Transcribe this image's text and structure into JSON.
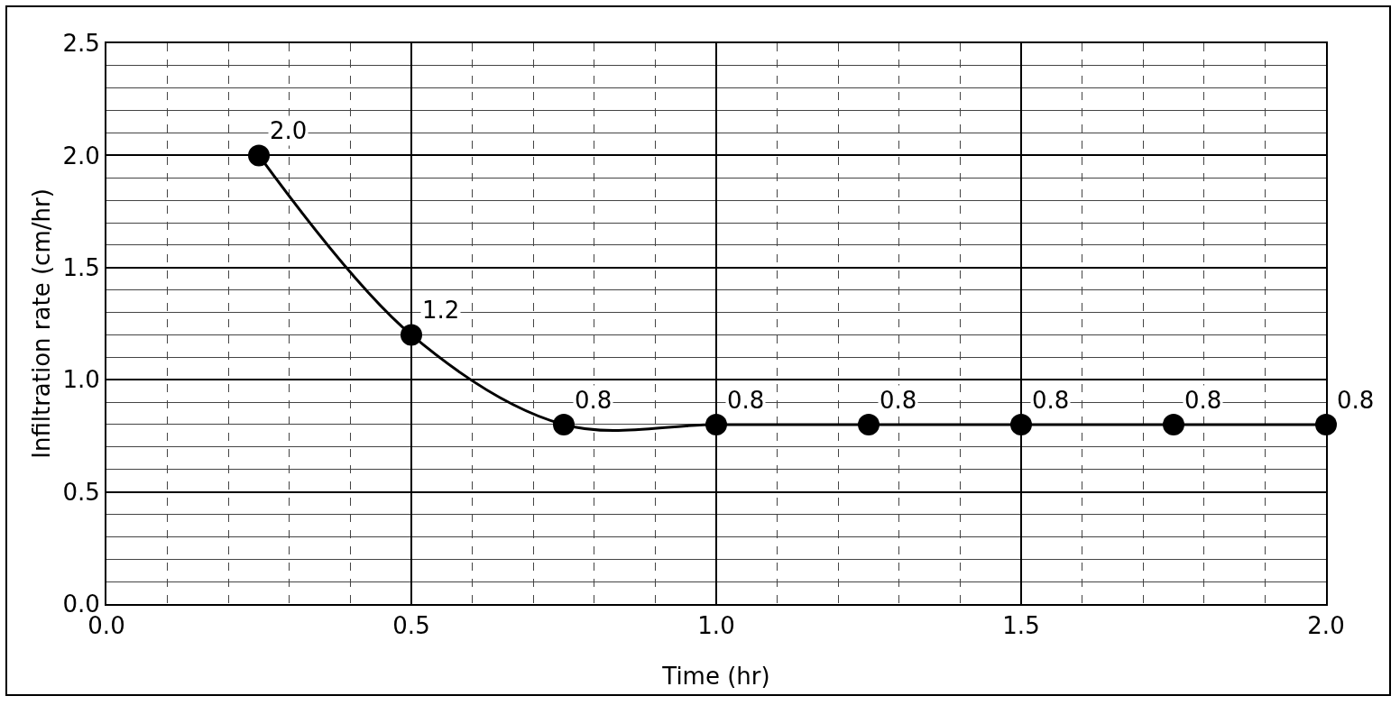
{
  "chart_data": {
    "type": "line",
    "xlabel": "Time (hr)",
    "ylabel": "Infiltration rate (cm/hr)",
    "x": [
      0.25,
      0.5,
      0.75,
      1.0,
      1.25,
      1.5,
      1.75,
      2.0
    ],
    "series": [
      {
        "color": "#000000",
        "values": [
          2.0,
          1.2,
          0.8,
          0.8,
          0.8,
          0.8,
          0.8,
          0.8
        ],
        "value_labels": [
          "2.0",
          "1.2",
          "0.8",
          "0.8",
          "0.8",
          "0.8",
          "0.8",
          "0.8"
        ]
      }
    ],
    "marker": "circle",
    "line_style": "solid",
    "grid": true,
    "legend": false,
    "xlim": [
      0,
      2
    ],
    "xticks": [
      {
        "value": 0,
        "label": "0.0"
      },
      0.5,
      {
        "value": 1,
        "label": "1.0"
      },
      1.5,
      {
        "value": 2,
        "label": "2.0"
      }
    ],
    "ylim": [
      0,
      2.5
    ],
    "yticks": [
      {
        "value": 0,
        "label": "0.0"
      },
      0.5,
      {
        "value": 1,
        "label": "1.0"
      },
      1.5,
      {
        "value": 2,
        "label": "2.0"
      },
      2.5
    ]
  }
}
